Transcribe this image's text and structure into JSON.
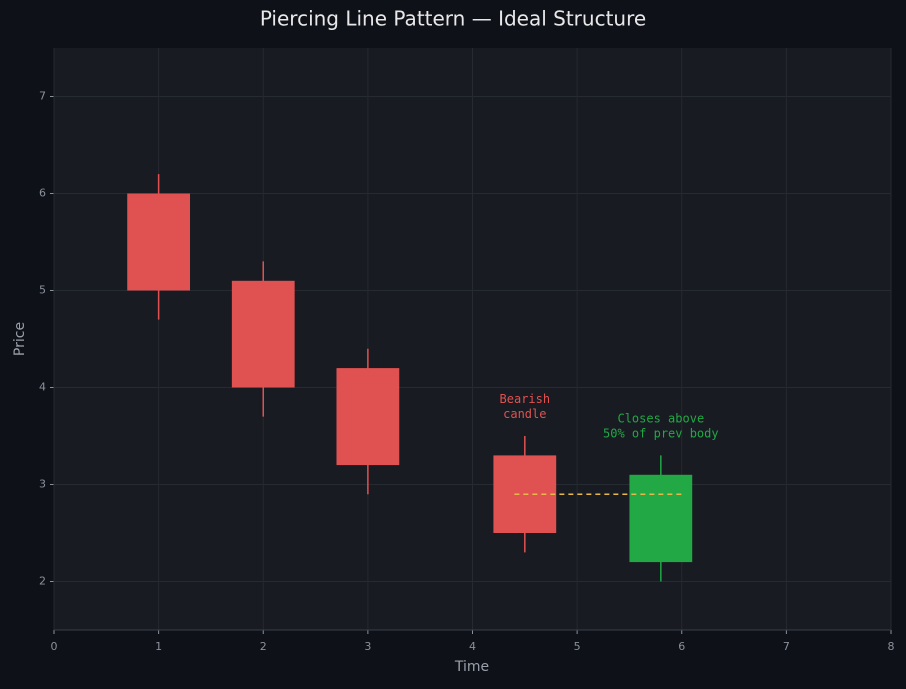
{
  "chart_data": {
    "type": "candlestick",
    "title": "Piercing Line Pattern — Ideal Structure",
    "xlabel": "Time",
    "ylabel": "Price",
    "xlim": [
      0,
      8
    ],
    "xticks": [
      0,
      1,
      2,
      3,
      4,
      5,
      6,
      7,
      8
    ],
    "ylim": [
      1.5,
      7.5
    ],
    "yticks": [
      2,
      3,
      4,
      5,
      6,
      7
    ],
    "grid": true,
    "candles": [
      {
        "x": 1,
        "open": 6.0,
        "high": 6.2,
        "low": 4.7,
        "close": 5.0,
        "color": "#e05252"
      },
      {
        "x": 2,
        "open": 5.1,
        "high": 5.3,
        "low": 3.7,
        "close": 4.0,
        "color": "#e05252"
      },
      {
        "x": 3,
        "open": 4.2,
        "high": 4.4,
        "low": 2.9,
        "close": 3.2,
        "color": "#e05252"
      },
      {
        "x": 4.5,
        "open": 3.3,
        "high": 3.5,
        "low": 2.3,
        "close": 2.5,
        "color": "#e05252"
      },
      {
        "x": 5.8,
        "open": 2.2,
        "high": 3.3,
        "low": 2.0,
        "close": 3.1,
        "color": "#22a845"
      }
    ],
    "reference_line": {
      "y": 2.9,
      "x": [
        4.4,
        6.0
      ],
      "color": "#e8b84a"
    },
    "annotations": [
      {
        "lines": [
          "Bearish",
          "candle"
        ],
        "x": 4.5,
        "y": 3.8,
        "color": "#e05252"
      },
      {
        "lines": [
          "Closes above",
          "50% of prev body"
        ],
        "x": 5.8,
        "y": 3.6,
        "color": "#22a845"
      }
    ]
  }
}
